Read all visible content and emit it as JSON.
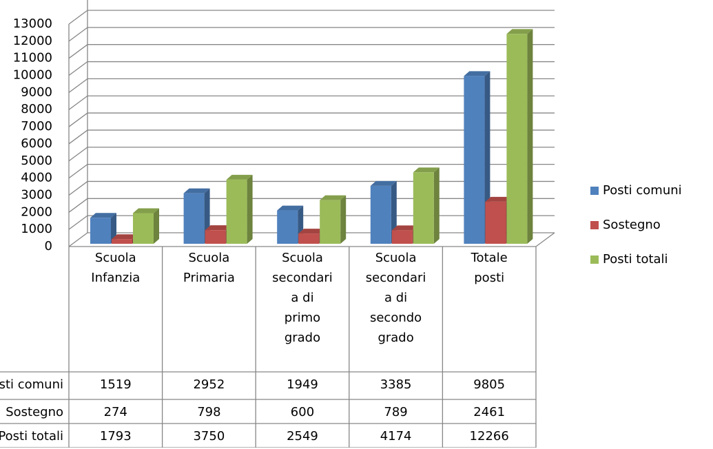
{
  "chart_data": {
    "type": "bar3d",
    "categories": [
      "Scuola Infanzia",
      "Scuola Primaria",
      "Scuola secondaria di primo grado",
      "Scuola secondaria di secondo grado",
      "Totale posti"
    ],
    "series": [
      {
        "name": "Posti comuni",
        "color": "#4f81bd",
        "values": [
          1519,
          2952,
          1949,
          3385,
          9805
        ]
      },
      {
        "name": "Sostegno",
        "color": "#c0504d",
        "values": [
          274,
          798,
          600,
          789,
          2461
        ]
      },
      {
        "name": "Posti totali",
        "color": "#9bbb59",
        "values": [
          1793,
          3750,
          2549,
          4174,
          12266
        ]
      }
    ],
    "ylim": [
      0,
      13000
    ],
    "yticks": [
      0,
      1000,
      2000,
      3000,
      4000,
      5000,
      6000,
      7000,
      8000,
      9000,
      10000,
      11000,
      12000,
      13000
    ],
    "grid": true,
    "legend": "right",
    "data_table": true
  }
}
